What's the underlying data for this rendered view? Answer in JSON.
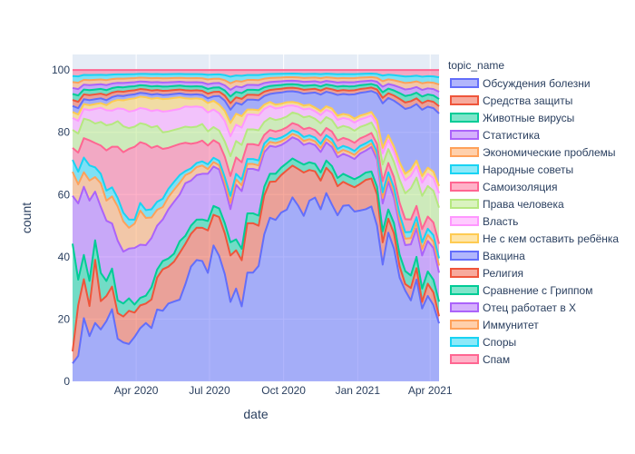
{
  "chart_data": {
    "type": "area",
    "title": "",
    "xlabel": "date",
    "ylabel": "count",
    "ylim": [
      0,
      105
    ],
    "grid": true,
    "legend_placement": "right",
    "legend_title": "topic_name",
    "x_ticks": [
      "Apr 2020",
      "Jul 2020",
      "Oct 2020",
      "Jan 2021",
      "Apr 2021"
    ],
    "y_ticks": [
      0,
      20,
      40,
      60,
      80,
      100
    ],
    "x": [
      "2020-01-13",
      "2020-01-20",
      "2020-01-27",
      "2020-02-03",
      "2020-02-10",
      "2020-02-17",
      "2020-02-24",
      "2020-03-02",
      "2020-03-09",
      "2020-03-16",
      "2020-03-23",
      "2020-03-30",
      "2020-04-06",
      "2020-04-13",
      "2020-04-20",
      "2020-04-27",
      "2020-05-04",
      "2020-05-11",
      "2020-05-18",
      "2020-05-25",
      "2020-06-01",
      "2020-06-08",
      "2020-06-15",
      "2020-06-22",
      "2020-06-29",
      "2020-07-06",
      "2020-07-13",
      "2020-07-20",
      "2020-07-27",
      "2020-08-03",
      "2020-08-10",
      "2020-08-17",
      "2020-08-24",
      "2020-08-31",
      "2020-09-07",
      "2020-09-14",
      "2020-09-21",
      "2020-09-28",
      "2020-10-05",
      "2020-10-12",
      "2020-10-19",
      "2020-10-26",
      "2020-11-02",
      "2020-11-09",
      "2020-11-16",
      "2020-11-23",
      "2020-11-30",
      "2020-12-07",
      "2020-12-14",
      "2020-12-21",
      "2020-12-28",
      "2021-01-04",
      "2021-01-11",
      "2021-01-18",
      "2021-01-25",
      "2021-02-01",
      "2021-02-08",
      "2021-02-15",
      "2021-02-22",
      "2021-03-01",
      "2021-03-08",
      "2021-03-15",
      "2021-03-22",
      "2021-03-29",
      "2021-04-05",
      "2021-04-12"
    ],
    "series": [
      {
        "name": "Обсуждения болезни",
        "color": "#636efa",
        "values": [
          3,
          4,
          13,
          9,
          12,
          11,
          12,
          16,
          10,
          9,
          9,
          11,
          14,
          15,
          13,
          18,
          17,
          19,
          20,
          21,
          24,
          28,
          30,
          29,
          23,
          31,
          29,
          21,
          12,
          17,
          13,
          22,
          22,
          23,
          34,
          41,
          42,
          45,
          48,
          52,
          48,
          42,
          47,
          49,
          42,
          52,
          46,
          40,
          44,
          43,
          42,
          45,
          47,
          50,
          40,
          21,
          32,
          26,
          18,
          14,
          13,
          18,
          11,
          14,
          12,
          8
        ]
      },
      {
        "name": "Средства защиты",
        "color": "#EF553B",
        "values": [
          2,
          8,
          8,
          6,
          13,
          6,
          5,
          5,
          6,
          6,
          8,
          6,
          6,
          5,
          7,
          8,
          10,
          9,
          10,
          12,
          10,
          8,
          8,
          8,
          9,
          7,
          9,
          8,
          7,
          7,
          8,
          10,
          10,
          8,
          9,
          9,
          10,
          10,
          11,
          9,
          10,
          11,
          8,
          7,
          7,
          7,
          8,
          7,
          6,
          5,
          6,
          7,
          8,
          8,
          8,
          4,
          3,
          3,
          2,
          1,
          2,
          2,
          1,
          2,
          2,
          1
        ]
      },
      {
        "name": "Животные вирусы",
        "color": "#00cc96",
        "values": [
          18,
          4,
          5,
          5,
          4,
          6,
          3,
          4,
          3,
          3,
          3,
          2,
          2,
          2,
          3,
          2,
          2,
          2,
          2,
          3,
          2,
          2,
          2,
          2,
          2,
          2,
          2,
          2,
          2,
          2,
          2,
          2,
          2,
          2,
          2,
          2,
          2,
          2,
          2,
          2,
          2,
          2,
          2,
          2,
          2,
          2,
          2,
          2,
          2,
          2,
          2,
          2,
          2,
          2,
          2,
          2,
          2,
          2,
          2,
          2,
          2,
          2,
          2,
          2,
          2,
          2
        ]
      },
      {
        "name": "Статистика",
        "color": "#ab63fa",
        "values": [
          8,
          12,
          14,
          16,
          10,
          14,
          12,
          10,
          14,
          12,
          12,
          14,
          14,
          13,
          12,
          11,
          10,
          12,
          13,
          12,
          13,
          11,
          11,
          11,
          10,
          9,
          9,
          7,
          5,
          10,
          10,
          9,
          9,
          9,
          8,
          7,
          7,
          6,
          6,
          6,
          6,
          5,
          5,
          5,
          5,
          5,
          5,
          5,
          5,
          5,
          5,
          6,
          6,
          7,
          7,
          5,
          6,
          5,
          5,
          4,
          5,
          5,
          5,
          5,
          5,
          4
        ]
      },
      {
        "name": "Экономические проблемы",
        "color": "#FFA15A",
        "values": [
          4,
          3,
          3,
          4,
          3,
          5,
          4,
          6,
          8,
          7,
          5,
          6,
          9,
          7,
          5,
          4,
          3,
          3,
          3,
          3,
          2,
          2,
          2,
          2,
          1,
          1,
          1,
          1,
          1,
          1,
          1,
          1,
          1,
          1,
          1,
          1,
          1,
          1,
          1,
          1,
          1,
          1,
          1,
          1,
          1,
          1,
          1,
          1,
          1,
          1,
          1,
          1,
          1,
          1,
          1,
          1,
          1,
          1,
          1,
          1,
          1,
          1,
          1,
          1,
          1,
          1
        ]
      },
      {
        "name": "Народные советы",
        "color": "#19d3f3",
        "values": [
          2,
          2,
          3,
          3,
          2,
          2,
          2,
          2,
          2,
          2,
          2,
          1,
          2,
          2,
          2,
          2,
          2,
          2,
          2,
          2,
          1,
          1,
          1,
          1,
          1,
          1,
          1,
          1,
          1,
          1,
          1,
          1,
          1,
          1,
          1,
          1,
          1,
          1,
          1,
          1,
          1,
          1,
          1,
          1,
          1,
          1,
          1,
          1,
          1,
          1,
          1,
          1,
          1,
          1,
          1,
          1,
          1,
          1,
          1,
          1,
          1,
          1,
          1,
          1,
          1,
          1
        ]
      },
      {
        "name": "Самоизоляция",
        "color": "#FF6692",
        "values": [
          2,
          3,
          4,
          5,
          5,
          6,
          8,
          9,
          12,
          14,
          17,
          18,
          16,
          17,
          15,
          14,
          12,
          10,
          9,
          8,
          7,
          6,
          5,
          5,
          4,
          4,
          4,
          4,
          3,
          3,
          3,
          3,
          3,
          3,
          2,
          2,
          2,
          2,
          2,
          2,
          2,
          2,
          2,
          2,
          2,
          2,
          2,
          2,
          2,
          2,
          2,
          2,
          2,
          2,
          2,
          2,
          2,
          2,
          2,
          2,
          2,
          2,
          2,
          2,
          2,
          2
        ]
      },
      {
        "name": "Права человека",
        "color": "#B6E880",
        "values": [
          3,
          3,
          4,
          4,
          4,
          5,
          5,
          5,
          6,
          6,
          5,
          5,
          5,
          5,
          5,
          5,
          4,
          4,
          4,
          4,
          4,
          4,
          4,
          4,
          3,
          3,
          3,
          3,
          3,
          3,
          3,
          3,
          3,
          3,
          3,
          3,
          3,
          3,
          3,
          3,
          3,
          3,
          3,
          3,
          3,
          3,
          3,
          3,
          3,
          3,
          3,
          3,
          3,
          3,
          3,
          3,
          3,
          3,
          4,
          4,
          5,
          5,
          5,
          5,
          5,
          5
        ]
      },
      {
        "name": "Власть",
        "color": "#FF97FF",
        "values": [
          2,
          2,
          2,
          2,
          3,
          3,
          3,
          3,
          3,
          4,
          4,
          4,
          4,
          4,
          4,
          4,
          5,
          5,
          5,
          5,
          5,
          5,
          5,
          4,
          4,
          4,
          4,
          4,
          3,
          3,
          3,
          3,
          3,
          3,
          3,
          3,
          3,
          3,
          3,
          2,
          2,
          2,
          2,
          2,
          2,
          2,
          2,
          2,
          2,
          2,
          2,
          2,
          2,
          2,
          2,
          2,
          2,
          2,
          2,
          2,
          2,
          2,
          2,
          2,
          2,
          2
        ]
      },
      {
        "name": "Не с кем оставить ребёнка",
        "color": "#FECB52",
        "values": [
          1,
          1,
          1,
          1,
          1,
          1,
          1,
          2,
          2,
          2,
          3,
          3,
          3,
          3,
          3,
          3,
          3,
          3,
          3,
          3,
          2,
          2,
          2,
          2,
          2,
          2,
          2,
          2,
          2,
          2,
          2,
          1,
          1,
          1,
          1,
          1,
          1,
          1,
          1,
          1,
          1,
          1,
          1,
          1,
          1,
          1,
          1,
          1,
          1,
          1,
          1,
          1,
          1,
          1,
          1,
          1,
          1,
          1,
          1,
          1,
          1,
          1,
          1,
          1,
          1,
          1
        ]
      },
      {
        "name": "Вакцина",
        "color": "#636efa",
        "values": [
          1,
          1,
          1,
          1,
          1,
          1,
          1,
          1,
          1,
          1,
          1,
          1,
          1,
          1,
          1,
          1,
          1,
          1,
          1,
          1,
          1,
          1,
          1,
          1,
          1,
          1,
          2,
          2,
          2,
          2,
          2,
          2,
          2,
          2,
          2,
          2,
          3,
          3,
          3,
          3,
          3,
          3,
          3,
          4,
          4,
          4,
          4,
          5,
          5,
          5,
          6,
          6,
          6,
          6,
          7,
          8,
          8,
          9,
          10,
          10,
          10,
          10,
          10,
          10,
          10,
          10
        ]
      },
      {
        "name": "Религия",
        "color": "#EF553B",
        "values": [
          1,
          1,
          1,
          1,
          1,
          1,
          1,
          1,
          1,
          1,
          1,
          1,
          1,
          1,
          1,
          1,
          1,
          1,
          1,
          1,
          1,
          1,
          1,
          1,
          1,
          1,
          1,
          1,
          1,
          1,
          1,
          1,
          1,
          1,
          1,
          1,
          1,
          1,
          1,
          1,
          1,
          1,
          1,
          1,
          1,
          1,
          1,
          1,
          1,
          1,
          1,
          1,
          1,
          1,
          1,
          1,
          1,
          1,
          1,
          1,
          1,
          1,
          1,
          1,
          1,
          1
        ]
      },
      {
        "name": "Сравнение с Гриппом",
        "color": "#00cc96",
        "values": [
          1,
          1,
          1,
          1,
          1,
          1,
          1,
          1,
          1,
          1,
          1,
          1,
          1,
          1,
          1,
          1,
          1,
          1,
          1,
          1,
          1,
          1,
          1,
          1,
          1,
          1,
          1,
          1,
          1,
          1,
          1,
          1,
          1,
          1,
          1,
          1,
          1,
          1,
          1,
          1,
          1,
          1,
          1,
          1,
          1,
          1,
          1,
          1,
          1,
          1,
          1,
          1,
          1,
          1,
          1,
          1,
          1,
          1,
          1,
          1,
          1,
          1,
          1,
          1,
          1,
          1
        ]
      },
      {
        "name": "Отец работает в Х",
        "color": "#ab63fa",
        "values": [
          1,
          1,
          1,
          1,
          1,
          1,
          1,
          1,
          1,
          1,
          1,
          1,
          1,
          1,
          1,
          1,
          1,
          1,
          1,
          1,
          1,
          1,
          1,
          1,
          1,
          1,
          1,
          1,
          1,
          1,
          1,
          1,
          1,
          1,
          1,
          1,
          1,
          1,
          1,
          1,
          1,
          1,
          1,
          1,
          1,
          1,
          1,
          1,
          1,
          1,
          1,
          1,
          1,
          1,
          1,
          1,
          1,
          1,
          1,
          1,
          1,
          1,
          1,
          1,
          1,
          1
        ]
      },
      {
        "name": "Иммунитет",
        "color": "#FFA15A",
        "values": [
          1,
          1,
          1,
          1,
          1,
          1,
          1,
          1,
          1,
          1,
          1,
          1,
          1,
          1,
          1,
          1,
          1,
          1,
          1,
          1,
          1,
          1,
          1,
          1,
          1,
          1,
          1,
          1,
          1,
          1,
          1,
          1,
          1,
          1,
          1,
          1,
          1,
          1,
          1,
          1,
          1,
          1,
          1,
          1,
          1,
          1,
          1,
          1,
          1,
          1,
          1,
          1,
          1,
          1,
          1,
          1,
          1,
          1,
          1,
          1,
          1,
          1,
          1,
          1,
          1,
          1
        ]
      },
      {
        "name": "Споры",
        "color": "#19d3f3",
        "values": [
          1,
          1,
          1,
          1,
          1,
          1,
          1,
          1,
          1,
          1,
          1,
          1,
          1,
          1,
          1,
          1,
          1,
          1,
          1,
          1,
          1,
          1,
          1,
          1,
          1,
          1,
          1,
          1,
          1,
          1,
          1,
          1,
          1,
          1,
          1,
          1,
          1,
          1,
          1,
          1,
          1,
          1,
          1,
          1,
          1,
          1,
          1,
          1,
          1,
          1,
          1,
          1,
          1,
          1,
          1,
          1,
          1,
          1,
          1,
          1,
          1,
          1,
          1,
          1,
          1,
          1
        ]
      },
      {
        "name": "Спам",
        "color": "#FF6692",
        "values": [
          1,
          1,
          1,
          1,
          1,
          1,
          1,
          1,
          1,
          1,
          1,
          1,
          1,
          1,
          1,
          1,
          1,
          1,
          1,
          1,
          1,
          1,
          1,
          1,
          1,
          1,
          1,
          1,
          1,
          1,
          1,
          1,
          1,
          1,
          1,
          1,
          1,
          1,
          1,
          1,
          1,
          1,
          1,
          1,
          1,
          1,
          1,
          1,
          1,
          1,
          1,
          1,
          1,
          1,
          1,
          1,
          1,
          1,
          1,
          1,
          1,
          1,
          1,
          1,
          1,
          1
        ]
      }
    ]
  }
}
